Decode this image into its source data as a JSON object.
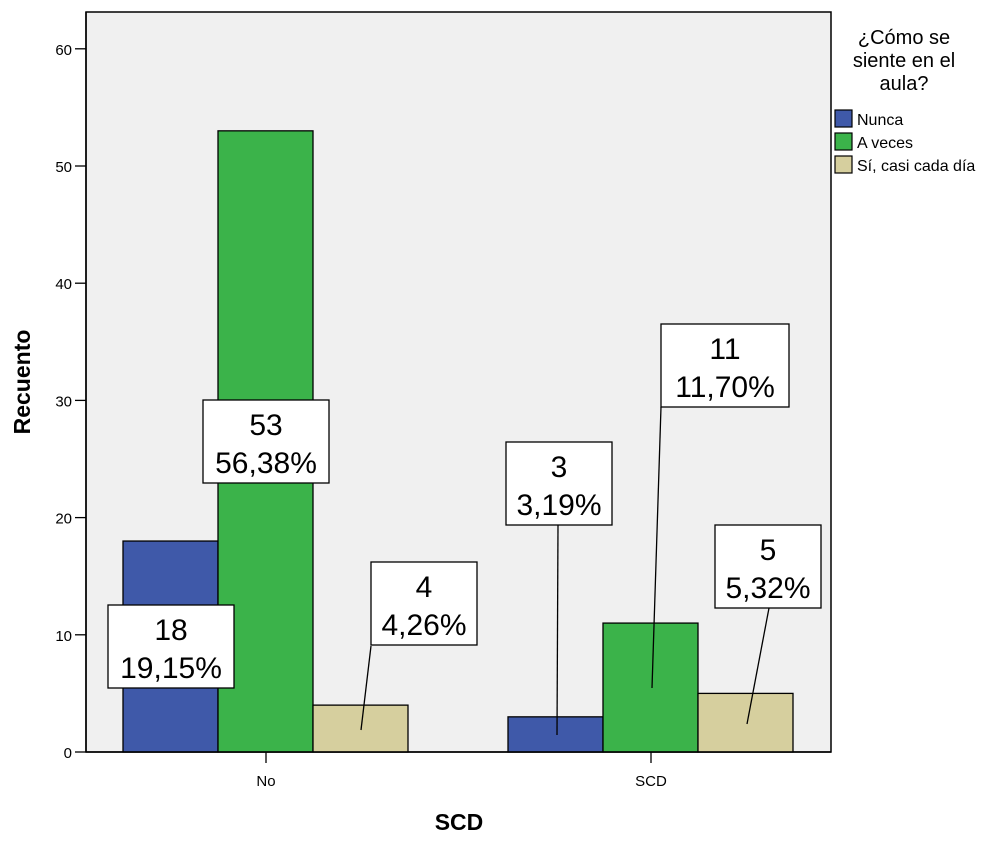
{
  "chart_data": {
    "type": "bar",
    "title": "",
    "xlabel": "SCD",
    "ylabel": "Recuento",
    "categories": [
      "No",
      "SCD"
    ],
    "ylim": [
      0,
      63
    ],
    "yticks": [
      0,
      10,
      20,
      30,
      40,
      50,
      60
    ],
    "grid": false,
    "legend_title": "¿Cómo se siente en el aula?",
    "legend_position": "right",
    "series": [
      {
        "name": "Nunca",
        "color": "#3f59a9",
        "values": [
          18,
          3
        ],
        "labels": [
          [
            "18",
            "19,15%"
          ],
          [
            "3",
            "3,19%"
          ]
        ]
      },
      {
        "name": "A veces",
        "color": "#3bb34a",
        "values": [
          53,
          11
        ],
        "labels": [
          [
            "53",
            "56,38%"
          ],
          [
            "11",
            "11,70%"
          ]
        ]
      },
      {
        "name": "Sí, casi cada día",
        "color": "#d6cf9e",
        "values": [
          4,
          5
        ],
        "labels": [
          [
            "4",
            "4,26%"
          ],
          [
            "5",
            "5,32%"
          ]
        ]
      }
    ],
    "colors": {
      "plot_background": "#f0f0f0",
      "axis": "#000000",
      "label_box": "#ffffff"
    }
  }
}
